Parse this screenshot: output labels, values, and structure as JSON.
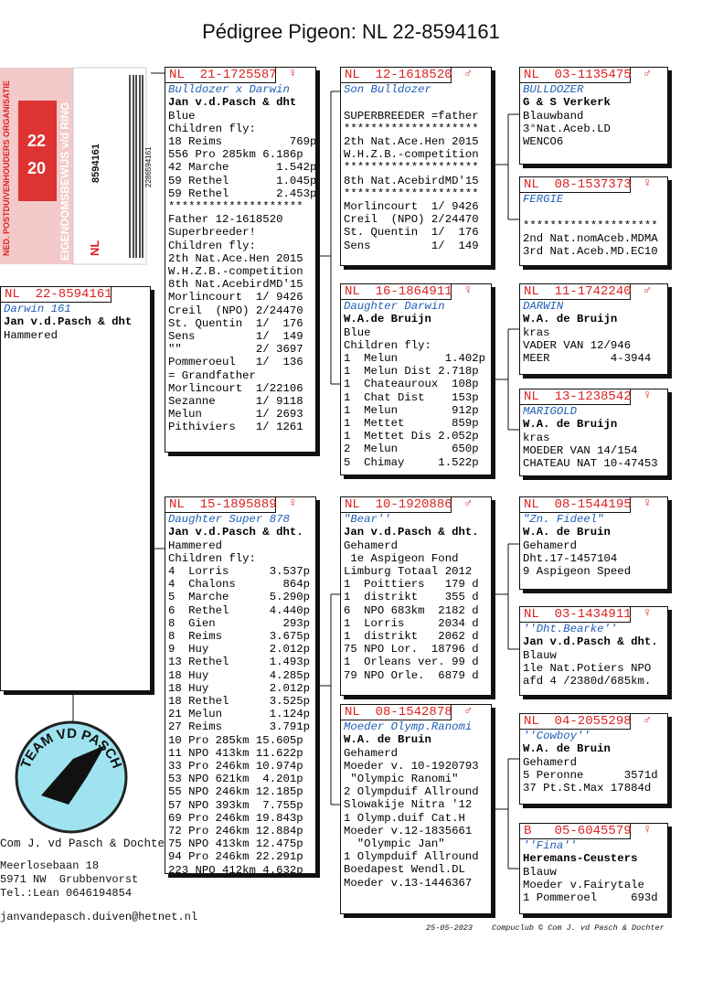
{
  "title": "Pédigree Pigeon: NL  22-8594161",
  "ring_card": {
    "org": "NED. POSTDUIVENHOUDERS ORGANISATIE",
    "doc": "EIGENDOMSBEWIJS v/d RING",
    "year_a": "20",
    "year_b": "22",
    "country": "NL",
    "number": "8594161",
    "barcode": "2286594161"
  },
  "subject": {
    "ring": "NL  22-8594161",
    "name": "Darwin 161",
    "owner": "Jan v.d.Pasch & dht",
    "lines": [
      "Hammered"
    ]
  },
  "parents": [
    {
      "ring": "NL  21-1725587",
      "sex": "♀",
      "name": "Bulldozer x Darwin",
      "owner": "Jan v.d.Pasch & dht",
      "lines": [
        "Blue",
        "Children fly:",
        "18 Reims          769p",
        "556 Pro 285km 6.186p",
        "42 Marche       1.542p",
        "59 Rethel       1.045p",
        "59 Rethel       2.453p",
        "********************",
        "Father 12-1618520",
        "Superbreeder!",
        "Children fly:",
        "2th Nat.Ace.Hen 2015",
        "W.H.Z.B.-competition",
        "8th Nat.AcebirdMD'15",
        "Morlincourt  1/ 9426",
        "Creil  (NPO) 2/24470",
        "St. Quentin  1/  176",
        "Sens         1/  149",
        "\"\"           2/ 3697",
        "Pommeroeul   1/  136",
        "= Grandfather",
        "Morlincourt  1/22106",
        "Sezanne      1/ 9118",
        "Melun        1/ 2693",
        "Pithiviers   1/ 1261"
      ]
    },
    {
      "ring": "NL  15-1895889",
      "sex": "♀",
      "name": "Daughter Super 878",
      "owner": "Jan v.d.Pasch & dht.",
      "lines": [
        "Hammered",
        "Children fly:",
        "4  Lorris      3.537p",
        "4  Chalons       864p",
        "5  Marche      5.290p",
        "6  Rethel      4.440p",
        "8  Gien          293p",
        "8  Reims       3.675p",
        "9  Huy         2.012p",
        "13 Rethel      1.493p",
        "18 Huy         4.285p",
        "18 Huy         2.012p",
        "18 Rethel      3.525p",
        "21 Melun       1.124p",
        "27 Reims       3.791p",
        "10 Pro 285km 15.605p",
        "11 NPO 413km 11.622p",
        "33 Pro 246km 10.974p",
        "53 NPO 621km  4.201p",
        "55 NPO 246km 12.185p",
        "57 NPO 393km  7.755p",
        "69 Pro 246km 19.843p",
        "72 Pro 246km 12.884p",
        "75 NPO 413km 12.475p",
        "94 Pro 246km 22.291p",
        "223 NPO 412km 4.632p"
      ]
    }
  ],
  "grandparents": [
    {
      "ring": "NL  12-1618520",
      "sex": "♂",
      "name": "Son Bulldozer",
      "lines": [
        "SUPERBREEDER =father",
        "********************",
        "2th Nat.Ace.Hen 2015",
        "W.H.Z.B.-competition",
        "********************",
        "8th Nat.AcebirdMD'15",
        "********************",
        "Morlincourt  1/ 9426",
        "Creil  (NPO) 2/24470",
        "St. Quentin  1/  176",
        "Sens         1/  149"
      ]
    },
    {
      "ring": "NL  16-1864911",
      "sex": "♀",
      "name": "Daughter Darwin",
      "owner": "W.A.de Bruijn",
      "lines": [
        "Blue",
        "Children fly:",
        "1  Melun       1.402p",
        "1  Melun Dist 2.718p",
        "1  Chateauroux  108p",
        "1  Chat Dist    153p",
        "1  Melun        912p",
        "1  Mettet       859p",
        "1  Mettet Dis 2.052p",
        "2  Melun        650p",
        "5  Chimay     1.522p"
      ]
    },
    {
      "ring": "NL  10-1920886",
      "sex": "♂",
      "name": "\"Bear''",
      "owner": "Jan v.d.Pasch & dht.",
      "lines": [
        "Gehamerd",
        " 1e Aspigeon Fond",
        "Limburg Totaal 2012",
        "1  Poittiers   179 d",
        "1  distrikt    355 d",
        "6  NPO 683km  2182 d",
        "1  Lorris     2034 d",
        "1  distrikt   2062 d",
        "75 NPO Lor.  18796 d",
        "1  Orleans ver. 99 d",
        "79 NPO Orle.  6879 d"
      ]
    },
    {
      "ring": "NL  08-1542878",
      "sex": "♂",
      "name": "Moeder Olymp.Ranomi",
      "owner": "W.A. de Bruin",
      "lines": [
        "Gehamerd",
        "Moeder v. 10-1920793",
        " \"Olympic Ranomi\"",
        "2 Olympduif Allround",
        "Slowakije Nitra '12",
        "1 Olymp.duif Cat.H",
        "Moeder v.12-1835661",
        "  \"Olympic Jan\"",
        "1 Olympduif Allround",
        "Boedapest Wendl.DL",
        "Moeder v.13-1446367"
      ]
    }
  ],
  "great_grandparents": [
    {
      "ring": "NL  03-1135475",
      "sex": "♂",
      "name": "BULLDOZER",
      "owner": "G & S Verkerk",
      "lines": [
        "Blauwband",
        "3°Nat.Aceb.LD",
        "WENCO6"
      ]
    },
    {
      "ring": "NL  08-1537373",
      "sex": "♀",
      "name": "FERGIE",
      "lines": [
        "********************",
        "2nd Nat.nomAceb.MDMA",
        "3rd Nat.Aceb.MD.EC10"
      ]
    },
    {
      "ring": "NL  11-1742240",
      "sex": "♂",
      "name": "DARWIN",
      "owner": "W.A. de Bruijn",
      "lines": [
        "kras",
        "VADER VAN 12/946",
        "MEER         4-3944"
      ]
    },
    {
      "ring": "NL  13-1238542",
      "sex": "♀",
      "name": "MARIGOLD",
      "owner": "W.A. de Bruijn",
      "lines": [
        "kras",
        "MOEDER VAN 14/154",
        "CHATEAU NAT 10-47453"
      ]
    },
    {
      "ring": "NL  08-1544195",
      "sex": "♀",
      "name": "\"Zn. Fideel\"",
      "owner": "W.A. de Bruin",
      "lines": [
        "Gehamerd",
        "Dht.17-1457104",
        "9 Aspigeon Speed"
      ]
    },
    {
      "ring": "NL  03-1434911",
      "sex": "♀",
      "name": "''Dht.Bearke''",
      "owner": "Jan v.d.Pasch & dht.",
      "lines": [
        "Blauw",
        "1le Nat.Potiers NPO",
        "afd 4 /2380d/685km."
      ]
    },
    {
      "ring": "NL  04-2055298",
      "sex": "♂",
      "name": "''Cowboy''",
      "owner": "W.A. de Bruin",
      "lines": [
        "Gehamerd",
        "5 Peronne      3571d",
        "37 Pt.St.Max 17884d"
      ]
    },
    {
      "ring": "B   05-6045579",
      "sex": "♀",
      "name": "''Fina''",
      "owner": "Heremans-Ceusters",
      "lines": [
        "Blauw",
        "Moeder v.Fairytale",
        "1 Pommeroel     693d"
      ]
    }
  ],
  "logo": "TEAM VD PASCH",
  "footer": {
    "company": "Com J. vd Pasch & Dochter",
    "address": [
      "Meerlosebaan 18",
      "5971 NW  Grubbenvorst",
      "Tel.:Lean 0646194854"
    ],
    "email": "janvandepasch.duiven@hetnet.nl",
    "date": "25-05-2023",
    "credit": "Compuclub © Com J. vd Pasch & Dochter"
  }
}
